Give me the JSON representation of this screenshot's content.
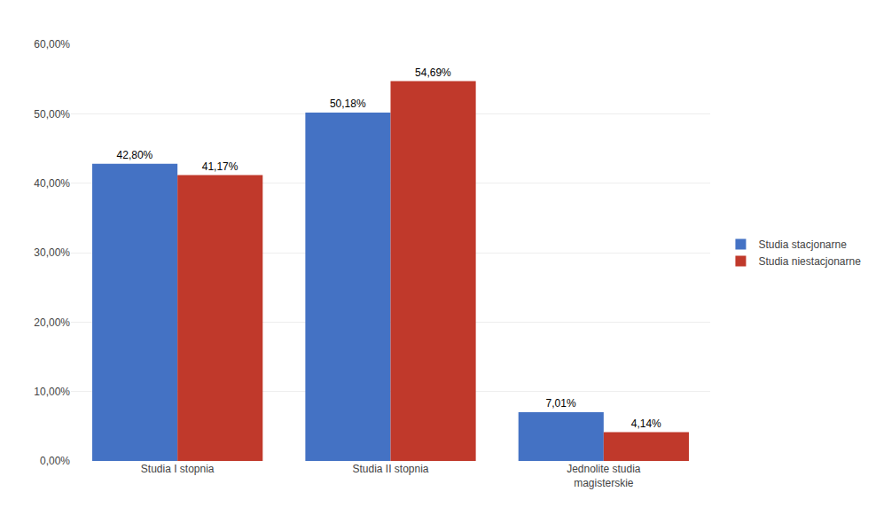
{
  "chart_data": {
    "type": "bar",
    "categories": [
      "Studia I stopnia",
      "Studia II stopnia",
      "Jednolite studia\nmagisterskie"
    ],
    "series": [
      {
        "name": "Studia stacjonarne",
        "color": "#4472c4",
        "values": [
          42.8,
          50.18,
          7.01
        ],
        "value_labels": [
          "42,80%",
          "50,18%",
          "7,01%"
        ]
      },
      {
        "name": "Studia niestacjonarne",
        "color": "#c0392b",
        "values": [
          41.17,
          54.69,
          4.14
        ],
        "value_labels": [
          "41,17%",
          "54,69%",
          "4,14%"
        ]
      }
    ],
    "ylim": [
      0,
      60
    ],
    "yticks": [
      {
        "value": 0,
        "label": "0,00%"
      },
      {
        "value": 10,
        "label": "10,00%"
      },
      {
        "value": 20,
        "label": "20,00%"
      },
      {
        "value": 30,
        "label": "30,00%"
      },
      {
        "value": 40,
        "label": "40,00%"
      },
      {
        "value": 50,
        "label": "50,00%"
      },
      {
        "value": 60,
        "label": "60,00%"
      }
    ],
    "grid": true,
    "data_labels": true,
    "legend": "right"
  }
}
